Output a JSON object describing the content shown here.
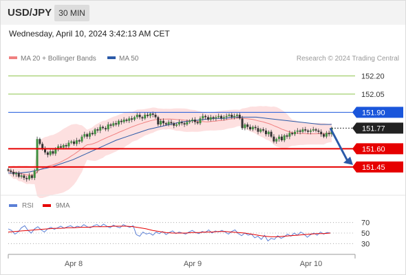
{
  "header": {
    "symbol": "USD/JPY",
    "timeframe": "30 MIN"
  },
  "datetime": "Wednesday, April 10, 2024 3:42:13 AM CET",
  "legend": {
    "ma_bb": {
      "label": "MA 20 + Bollinger Bands",
      "color": "#f08080"
    },
    "ma50": {
      "label": "MA 50",
      "color": "#2b5aa8"
    },
    "credit": "Research © 2024 Trading Central"
  },
  "chart_data": [
    {
      "type": "candlestick",
      "title": "USD/JPY 30 MIN",
      "ylim": [
        151.24,
        152.27
      ],
      "y_ticks_shown": [
        "152.20",
        "152.05"
      ],
      "x_tick_labels": [
        "Apr 8",
        "Apr 9",
        "Apr 10"
      ],
      "levels": [
        {
          "value": 152.2,
          "label": "152.20",
          "color": "#8bc34a",
          "kind": "target"
        },
        {
          "value": 152.05,
          "label": "152.05",
          "color": "#8bc34a",
          "kind": "target"
        },
        {
          "value": 151.9,
          "label": "151.90",
          "color": "#1a56db",
          "kind": "pivot"
        },
        {
          "value": 151.77,
          "label": "151.77",
          "color": "#222222",
          "kind": "last_price"
        },
        {
          "value": 151.6,
          "label": "151.60",
          "color": "#e60000",
          "kind": "support"
        },
        {
          "value": 151.45,
          "label": "151.45",
          "color": "#e60000",
          "kind": "support"
        }
      ],
      "series_close": [
        151.42,
        151.41,
        151.39,
        151.4,
        151.37,
        151.38,
        151.36,
        151.35,
        151.38,
        151.36,
        151.42,
        151.68,
        151.64,
        151.6,
        151.57,
        151.55,
        151.58,
        151.56,
        151.6,
        151.62,
        151.61,
        151.63,
        151.62,
        151.65,
        151.66,
        151.64,
        151.67,
        151.66,
        151.7,
        151.72,
        151.7,
        151.73,
        151.72,
        151.76,
        151.75,
        151.78,
        151.77,
        151.76,
        151.8,
        151.79,
        151.81,
        151.8,
        151.83,
        151.82,
        151.84,
        151.83,
        151.85,
        151.84,
        151.86,
        151.88,
        151.86,
        151.85,
        151.88,
        151.87,
        151.89,
        151.88,
        151.86,
        151.8,
        151.83,
        151.81,
        151.8,
        151.82,
        151.81,
        151.79,
        151.8,
        151.82,
        151.81,
        151.8,
        151.82,
        151.83,
        151.84,
        151.82,
        151.81,
        151.85,
        151.87,
        151.86,
        151.84,
        151.86,
        151.85,
        151.86,
        151.87,
        151.85,
        151.86,
        151.87,
        151.88,
        151.86,
        151.87,
        151.88,
        151.85,
        151.77,
        151.8,
        151.78,
        151.76,
        151.78,
        151.77,
        151.74,
        151.76,
        151.75,
        151.72,
        151.74,
        151.7,
        151.66,
        151.68,
        151.7,
        151.67,
        151.71,
        151.7,
        151.73,
        151.72,
        151.74,
        151.75,
        151.74,
        151.76,
        151.75,
        151.74,
        151.75,
        151.76,
        151.75,
        151.74,
        151.72,
        151.7,
        151.73,
        151.72,
        151.77
      ],
      "ma50_curve": [
        151.4,
        151.4,
        151.41,
        151.43,
        151.45,
        151.48,
        151.51,
        151.55,
        151.59,
        151.63,
        151.67,
        151.7,
        151.73,
        151.76,
        151.78,
        151.8,
        151.82,
        151.83,
        151.84,
        151.85,
        151.85,
        151.86,
        151.86,
        151.86,
        151.85,
        151.84,
        151.83,
        151.82,
        151.81,
        151.8,
        151.8
      ]
    },
    {
      "type": "line",
      "title": "RSI",
      "legend": [
        "RSI",
        "9MA"
      ],
      "y_ticks": [
        70,
        50,
        30
      ],
      "ylim": [
        20,
        80
      ],
      "series": [
        {
          "name": "RSI",
          "color": "#5b7fd6",
          "values": [
            58,
            55,
            48,
            52,
            60,
            64,
            55,
            50,
            58,
            62,
            56,
            52,
            58,
            61,
            57,
            60,
            63,
            59,
            62,
            64,
            60,
            63,
            61,
            66,
            62,
            60,
            64,
            66,
            62,
            67,
            63,
            60,
            65,
            62,
            60,
            66,
            63,
            61,
            64,
            47,
            44,
            52,
            48,
            50,
            46,
            52,
            49,
            53,
            47,
            51,
            54,
            49,
            52,
            50,
            48,
            52,
            55,
            51,
            49,
            53,
            51,
            56,
            50,
            54,
            52,
            55,
            52,
            48,
            53,
            56,
            49,
            45,
            50,
            46,
            48,
            41,
            44,
            38,
            46,
            35,
            40,
            38,
            45,
            40,
            43,
            48,
            44,
            50,
            46,
            52,
            48,
            42,
            47,
            50,
            46,
            52,
            48,
            51,
            50
          ]
        },
        {
          "name": "9MA",
          "color": "#e60000",
          "values": [
            52,
            53,
            54,
            55,
            56,
            57,
            58,
            59,
            59,
            60,
            60,
            61,
            61,
            62,
            62,
            62,
            63,
            63,
            63,
            62,
            60,
            58,
            55,
            53,
            51,
            50,
            50,
            50,
            51,
            51,
            52,
            52,
            53,
            53,
            52,
            51,
            50,
            48,
            46,
            44,
            43,
            43,
            44,
            45,
            46,
            47,
            48,
            49,
            49,
            50
          ]
        }
      ]
    }
  ]
}
